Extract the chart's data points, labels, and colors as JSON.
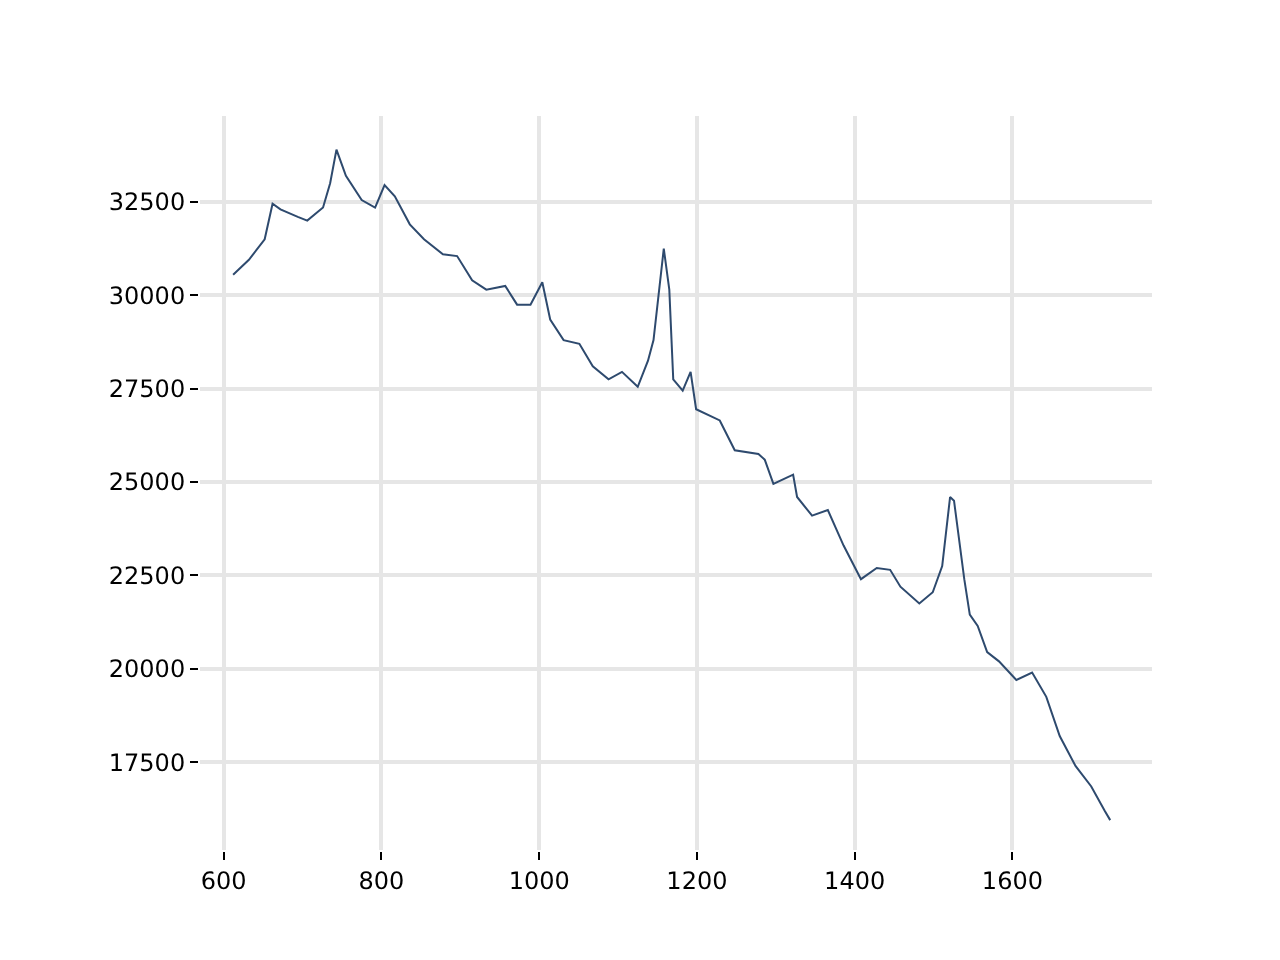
{
  "chart_data": {
    "type": "line",
    "x": [
      612,
      632,
      652,
      662,
      672,
      694,
      706,
      726,
      735,
      743,
      755,
      775,
      792,
      804,
      817,
      836,
      854,
      878,
      896,
      915,
      933,
      957,
      972,
      989,
      1004,
      1014,
      1031,
      1051,
      1068,
      1088,
      1105,
      1125,
      1138,
      1145,
      1158,
      1165,
      1170,
      1182,
      1192,
      1199,
      1229,
      1248,
      1278,
      1286,
      1297,
      1322,
      1327,
      1346,
      1366,
      1386,
      1408,
      1428,
      1445,
      1458,
      1482,
      1499,
      1511,
      1521,
      1526,
      1539,
      1546,
      1556,
      1568,
      1583,
      1605,
      1625,
      1643,
      1660,
      1680,
      1700,
      1717,
      1724
    ],
    "series": [
      {
        "color": "#2e4a6e",
        "values": [
          30550,
          30950,
          31500,
          32450,
          32300,
          32100,
          32000,
          32350,
          33000,
          33900,
          33200,
          32550,
          32350,
          32950,
          32650,
          31900,
          31500,
          31100,
          31050,
          30400,
          30150,
          30250,
          29750,
          29750,
          30350,
          29350,
          28800,
          28700,
          28100,
          27750,
          27950,
          27550,
          28250,
          28800,
          31250,
          30150,
          27750,
          27450,
          27950,
          26950,
          26650,
          25850,
          25750,
          25600,
          24950,
          25200,
          24600,
          24100,
          24250,
          23300,
          22400,
          22700,
          22650,
          22200,
          21750,
          22050,
          22750,
          24600,
          24500,
          22400,
          21450,
          21150,
          20450,
          20200,
          19700,
          19900,
          19250,
          18200,
          17400,
          16850,
          16200,
          15950
        ]
      }
    ],
    "xlim": [
      570,
      1777
    ],
    "ylim": [
      15150,
      34800
    ],
    "xticks": [
      600,
      800,
      1000,
      1200,
      1400,
      1600
    ],
    "yticks": [
      17500,
      20000,
      22500,
      25000,
      27500,
      30000,
      32500
    ],
    "grid": true,
    "marker": "none",
    "line_style": "solid"
  }
}
